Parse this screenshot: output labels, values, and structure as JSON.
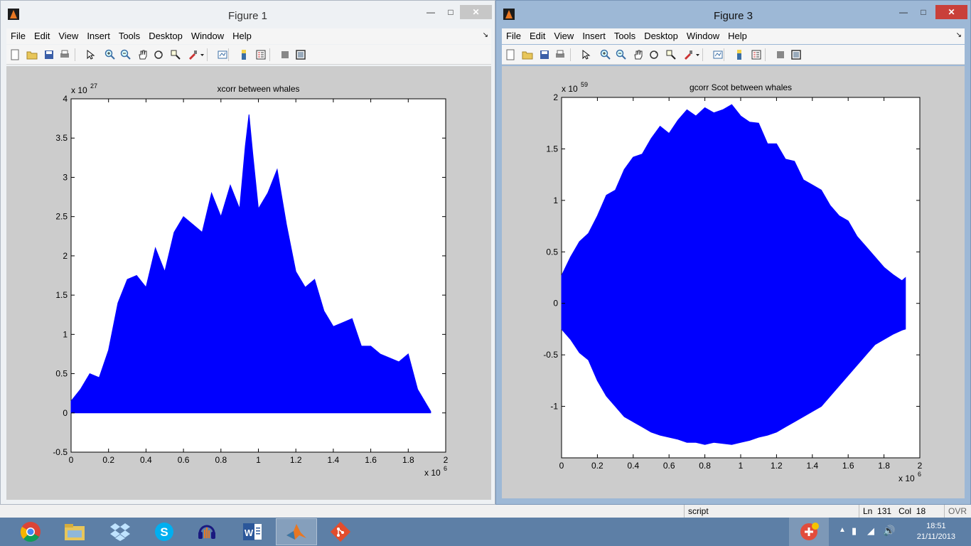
{
  "figure1": {
    "title": "Figure 1",
    "menu": [
      "File",
      "Edit",
      "View",
      "Insert",
      "Tools",
      "Desktop",
      "Window",
      "Help"
    ],
    "chart_data": {
      "type": "area",
      "title": "xcorr between whales",
      "xlabel": "",
      "ylabel": "",
      "x_exponent_label": "x 10",
      "x_exponent": "6",
      "y_exponent_label": "x 10",
      "y_exponent": "27",
      "xlim": [
        0,
        2
      ],
      "ylim": [
        -0.5,
        4
      ],
      "xticks": [
        "0",
        "0.2",
        "0.4",
        "0.6",
        "0.8",
        "1",
        "1.2",
        "1.4",
        "1.6",
        "1.8",
        "2"
      ],
      "yticks": [
        "-0.5",
        "0",
        "0.5",
        "1",
        "1.5",
        "2",
        "2.5",
        "3",
        "3.5",
        "4"
      ],
      "grid": false,
      "color": "#0000ff",
      "series": [
        {
          "x": [
            0,
            0.05,
            0.1,
            0.15,
            0.2,
            0.25,
            0.3,
            0.35,
            0.4,
            0.45,
            0.5,
            0.55,
            0.6,
            0.65,
            0.7,
            0.75,
            0.8,
            0.85,
            0.9,
            0.93,
            0.95,
            0.97,
            1.0,
            1.05,
            1.1,
            1.15,
            1.2,
            1.25,
            1.3,
            1.35,
            1.4,
            1.45,
            1.5,
            1.55,
            1.6,
            1.65,
            1.7,
            1.75,
            1.8,
            1.85,
            1.9,
            1.92
          ],
          "upper": [
            0.15,
            0.3,
            0.5,
            0.45,
            0.8,
            1.4,
            1.7,
            1.75,
            1.6,
            2.1,
            1.8,
            2.3,
            2.5,
            2.4,
            2.3,
            2.8,
            2.5,
            2.9,
            2.6,
            3.4,
            3.8,
            3.3,
            2.6,
            2.8,
            3.1,
            2.4,
            1.8,
            1.6,
            1.7,
            1.3,
            1.1,
            1.15,
            1.2,
            0.85,
            0.85,
            0.75,
            0.7,
            0.65,
            0.75,
            0.3,
            0.1,
            0.02
          ],
          "lower": [
            0,
            0,
            0,
            0,
            0,
            0,
            0,
            0,
            0,
            0,
            0,
            0,
            0,
            0,
            0,
            0,
            0,
            0,
            0,
            0,
            0,
            0,
            0,
            0,
            0,
            0,
            0,
            0,
            0,
            0,
            0,
            0,
            0,
            0,
            0,
            0,
            0,
            0,
            0,
            0,
            0,
            0
          ]
        }
      ]
    }
  },
  "figure3": {
    "title": "Figure 3",
    "menu": [
      "File",
      "Edit",
      "View",
      "Insert",
      "Tools",
      "Desktop",
      "Window",
      "Help"
    ],
    "chart_data": {
      "type": "area",
      "title": "gcorr Scot between whales",
      "xlabel": "",
      "ylabel": "",
      "x_exponent_label": "x 10",
      "x_exponent": "6",
      "y_exponent_label": "x 10",
      "y_exponent": "59",
      "xlim": [
        0,
        2
      ],
      "ylim": [
        -1.5,
        2
      ],
      "xticks": [
        "0",
        "0.2",
        "0.4",
        "0.6",
        "0.8",
        "1",
        "1.2",
        "1.4",
        "1.6",
        "1.8",
        "2"
      ],
      "yticks": [
        "-1",
        "-0.5",
        "0",
        "0.5",
        "1",
        "1.5",
        "2"
      ],
      "grid": false,
      "color": "#0000ff",
      "series": [
        {
          "x": [
            0,
            0.05,
            0.1,
            0.15,
            0.2,
            0.25,
            0.3,
            0.35,
            0.4,
            0.45,
            0.5,
            0.55,
            0.6,
            0.65,
            0.7,
            0.75,
            0.8,
            0.85,
            0.9,
            0.95,
            1.0,
            1.05,
            1.1,
            1.15,
            1.2,
            1.25,
            1.3,
            1.35,
            1.4,
            1.45,
            1.5,
            1.55,
            1.6,
            1.65,
            1.7,
            1.75,
            1.8,
            1.85,
            1.9,
            1.92
          ],
          "upper": [
            0.27,
            0.45,
            0.6,
            0.68,
            0.85,
            1.05,
            1.1,
            1.3,
            1.42,
            1.45,
            1.6,
            1.72,
            1.65,
            1.78,
            1.88,
            1.82,
            1.9,
            1.85,
            1.88,
            1.93,
            1.82,
            1.76,
            1.75,
            1.55,
            1.55,
            1.4,
            1.38,
            1.2,
            1.15,
            1.1,
            0.95,
            0.85,
            0.8,
            0.65,
            0.55,
            0.45,
            0.35,
            0.28,
            0.22,
            0.25
          ],
          "lower": [
            -0.25,
            -0.35,
            -0.48,
            -0.55,
            -0.75,
            -0.9,
            -1.0,
            -1.1,
            -1.15,
            -1.2,
            -1.25,
            -1.28,
            -1.3,
            -1.32,
            -1.35,
            -1.35,
            -1.37,
            -1.35,
            -1.36,
            -1.37,
            -1.35,
            -1.33,
            -1.3,
            -1.28,
            -1.25,
            -1.2,
            -1.15,
            -1.1,
            -1.05,
            -1.0,
            -0.9,
            -0.8,
            -0.7,
            -0.6,
            -0.5,
            -0.4,
            -0.35,
            -0.3,
            -0.26,
            -0.25
          ]
        }
      ]
    }
  },
  "statusbar": {
    "mode": "script",
    "ln_label": "Ln",
    "ln": "131",
    "col_label": "Col",
    "col": "18",
    "ovr": "OVR"
  },
  "taskbar": {
    "apps": [
      "chrome-icon",
      "file-explorer-icon",
      "dropbox-icon",
      "skype-icon",
      "audacity-icon",
      "word-icon",
      "matlab-icon",
      "git-icon"
    ],
    "time": "18:51",
    "date": "21/11/2013"
  }
}
